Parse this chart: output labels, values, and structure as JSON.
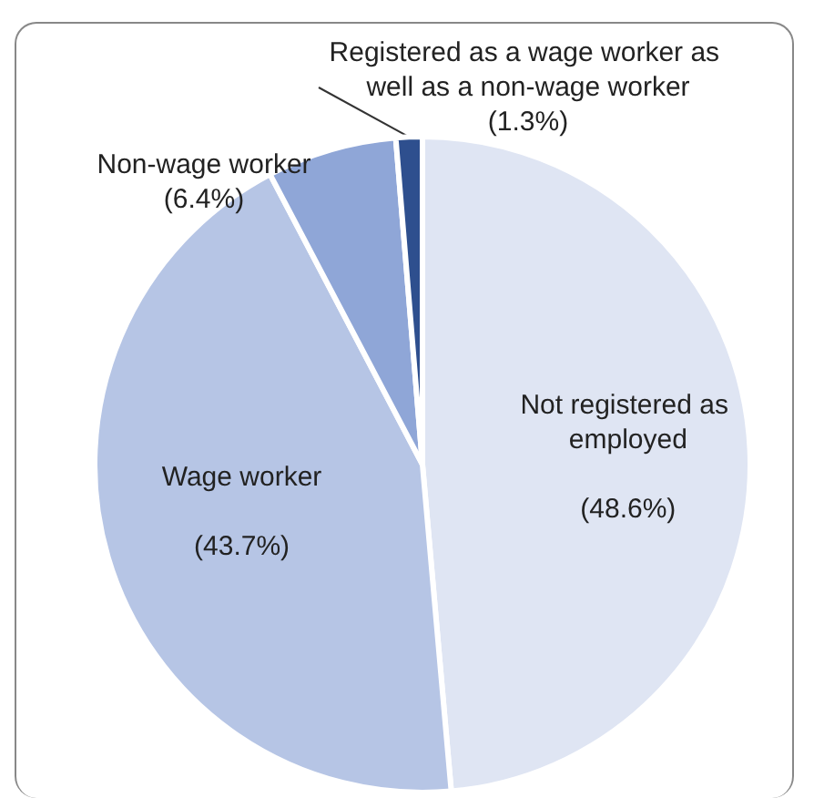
{
  "chart_data": {
    "type": "pie",
    "categories": [
      "Not registered as employed",
      "Wage worker",
      "Non-wage worker",
      "Registered as a wage worker as well as a non-wage worker"
    ],
    "values": [
      48.6,
      43.7,
      6.4,
      1.3
    ],
    "colors": [
      "#dfe5f3",
      "#b6c5e5",
      "#8fa6d7",
      "#2e4f8e"
    ],
    "value_labels": [
      "(48.6%)",
      "(43.7%)",
      "(6.4%)",
      "(1.3%)"
    ]
  }
}
